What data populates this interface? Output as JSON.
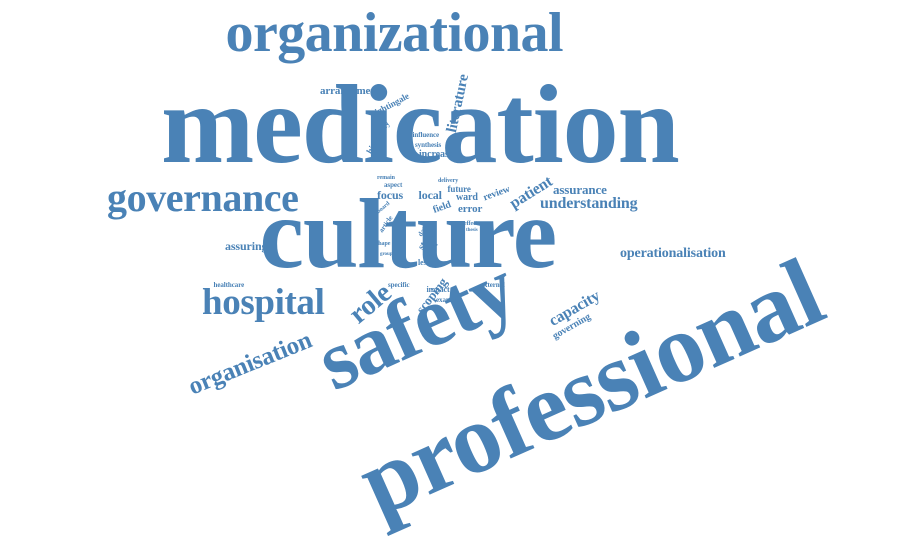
{
  "accent_color": "#4a82b6",
  "background_color": "#ffffff",
  "words": [
    {
      "text": "medication",
      "weight": 100
    },
    {
      "text": "culture",
      "weight": 95
    },
    {
      "text": "professional",
      "weight": 90
    },
    {
      "text": "safety",
      "weight": 75
    },
    {
      "text": "organizational",
      "weight": 55
    },
    {
      "text": "governance",
      "weight": 38
    },
    {
      "text": "hospital",
      "weight": 34
    },
    {
      "text": "organisation",
      "weight": 24
    },
    {
      "text": "role",
      "weight": 26
    },
    {
      "text": "understanding",
      "weight": 14
    },
    {
      "text": "operationalisation",
      "weight": 12
    },
    {
      "text": "capacity",
      "weight": 14
    },
    {
      "text": "literature",
      "weight": 13
    },
    {
      "text": "patient",
      "weight": 13
    },
    {
      "text": "assurance",
      "weight": 11
    },
    {
      "text": "assuring",
      "weight": 10
    },
    {
      "text": "arrangement",
      "weight": 9
    },
    {
      "text": "scoping",
      "weight": 10
    },
    {
      "text": "focus",
      "weight": 9
    },
    {
      "text": "local",
      "weight": 9
    },
    {
      "text": "error",
      "weight": 9
    },
    {
      "text": "governing",
      "weight": 8
    },
    {
      "text": "field",
      "weight": 8
    },
    {
      "text": "increase",
      "weight": 8
    },
    {
      "text": "nightingale",
      "weight": 7
    },
    {
      "text": "hierarchy",
      "weight": 7
    },
    {
      "text": "review",
      "weight": 8
    },
    {
      "text": "ward",
      "weight": 8
    },
    {
      "text": "future",
      "weight": 7
    },
    {
      "text": "study",
      "weight": 8
    },
    {
      "text": "aspect",
      "weight": 6
    },
    {
      "text": "influence",
      "weight": 6
    },
    {
      "text": "synthesis",
      "weight": 6
    },
    {
      "text": "delivery",
      "weight": 5
    },
    {
      "text": "remain",
      "weight": 5
    },
    {
      "text": "lesson",
      "weight": 6
    },
    {
      "text": "level",
      "weight": 6
    },
    {
      "text": "data",
      "weight": 6
    },
    {
      "text": "impact",
      "weight": 6
    },
    {
      "text": "example",
      "weight": 5
    },
    {
      "text": "healthcare",
      "weight": 5
    },
    {
      "text": "specific",
      "weight": 5
    },
    {
      "text": "external",
      "weight": 5
    },
    {
      "text": "article",
      "weight": 5
    },
    {
      "text": "board",
      "weight": 4
    },
    {
      "text": "shape",
      "weight": 4
    },
    {
      "text": "trust",
      "weight": 4
    },
    {
      "text": "effect",
      "weight": 4
    },
    {
      "text": "group",
      "weight": 3
    },
    {
      "text": "thesis",
      "weight": 3
    }
  ]
}
